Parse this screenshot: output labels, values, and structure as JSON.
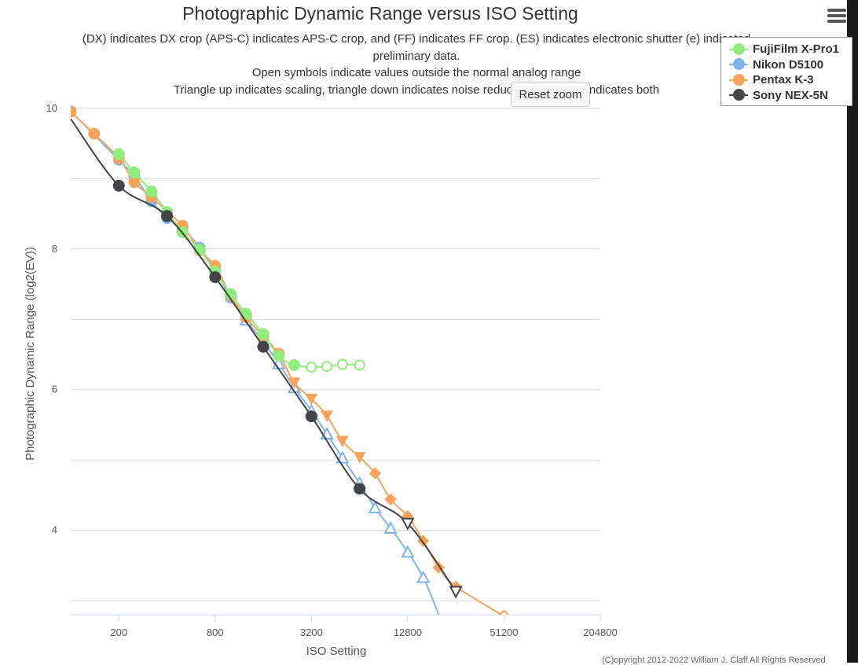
{
  "chart_data": {
    "type": "line",
    "title": "Photographic Dynamic Range versus ISO Setting",
    "subtitle_lines": [
      "(DX) indicates DX crop (APS-C) indicates APS-C crop, and (FF) indicates FF crop. (ES) indicates electronic shutter (e) indicated",
      "preliminary data.",
      "Open symbols indicate values outside the normal analog range",
      "Triangle up indicates scaling, triangle down indicates noise reduction, diamond indicates both"
    ],
    "xlabel": "ISO Setting",
    "ylabel": "Photographic Dynamic Range (log2(EV))",
    "x_scale": "log2",
    "x_ticks": [
      200,
      800,
      3200,
      12800,
      51200,
      204800
    ],
    "x_tick_labels": [
      "200",
      "800",
      "3200",
      "12800",
      "51200",
      "204800"
    ],
    "xlim": [
      100,
      204800
    ],
    "y_ticks": [
      4,
      6,
      8,
      10
    ],
    "y_tick_labels": [
      "4",
      "6",
      "8",
      "10"
    ],
    "ylim": [
      2.8,
      10.2
    ],
    "grid": true,
    "legend_position": "top-right",
    "series": [
      {
        "name": "FujiFilm X-Pro1",
        "color": "#90ed7d",
        "points": [
          {
            "iso": 200,
            "dr": 9.35,
            "marker": "circle",
            "open": false
          },
          {
            "iso": 250,
            "dr": 9.09,
            "marker": "circle",
            "open": false
          },
          {
            "iso": 320,
            "dr": 8.82,
            "marker": "circle",
            "open": false
          },
          {
            "iso": 400,
            "dr": 8.53,
            "marker": "circle",
            "open": false
          },
          {
            "iso": 500,
            "dr": 8.24,
            "marker": "circle",
            "open": false
          },
          {
            "iso": 640,
            "dr": 7.99,
            "marker": "circle",
            "open": false
          },
          {
            "iso": 800,
            "dr": 7.68,
            "marker": "circle",
            "open": false
          },
          {
            "iso": 1000,
            "dr": 7.36,
            "marker": "circle",
            "open": false
          },
          {
            "iso": 1250,
            "dr": 7.08,
            "marker": "circle",
            "open": false
          },
          {
            "iso": 1600,
            "dr": 6.79,
            "marker": "circle",
            "open": false
          },
          {
            "iso": 2000,
            "dr": 6.48,
            "marker": "circle",
            "open": false
          },
          {
            "iso": 2500,
            "dr": 6.35,
            "marker": "circle",
            "open": false
          },
          {
            "iso": 3200,
            "dr": 6.32,
            "marker": "circle",
            "open": true
          },
          {
            "iso": 4000,
            "dr": 6.33,
            "marker": "circle",
            "open": true
          },
          {
            "iso": 5000,
            "dr": 6.36,
            "marker": "circle",
            "open": true
          },
          {
            "iso": 6400,
            "dr": 6.35,
            "marker": "circle",
            "open": true
          }
        ]
      },
      {
        "name": "Nikon D5100",
        "color": "#7cb5ec",
        "points": [
          {
            "iso": 100,
            "dr": 9.96,
            "marker": "circle",
            "open": false
          },
          {
            "iso": 200,
            "dr": 9.27,
            "marker": "circle",
            "open": false
          },
          {
            "iso": 250,
            "dr": 9.04,
            "marker": "circle",
            "open": false
          },
          {
            "iso": 320,
            "dr": 8.68,
            "marker": "circle",
            "open": false
          },
          {
            "iso": 400,
            "dr": 8.44,
            "marker": "circle",
            "open": false
          },
          {
            "iso": 500,
            "dr": 8.3,
            "marker": "circle",
            "open": false
          },
          {
            "iso": 640,
            "dr": 8.02,
            "marker": "circle",
            "open": false
          },
          {
            "iso": 800,
            "dr": 7.7,
            "marker": "circle",
            "open": false
          },
          {
            "iso": 1000,
            "dr": 7.31,
            "marker": "circle",
            "open": false
          },
          {
            "iso": 1250,
            "dr": 6.99,
            "marker": "triangle-up",
            "open": true
          },
          {
            "iso": 1600,
            "dr": 6.68,
            "marker": "triangle-up",
            "open": true
          },
          {
            "iso": 2000,
            "dr": 6.37,
            "marker": "triangle-up",
            "open": true
          },
          {
            "iso": 2500,
            "dr": 6.03,
            "marker": "triangle-up",
            "open": true
          },
          {
            "iso": 3200,
            "dr": 5.7,
            "marker": "triangle-up",
            "open": true
          },
          {
            "iso": 4000,
            "dr": 5.37,
            "marker": "triangle-up",
            "open": true
          },
          {
            "iso": 5000,
            "dr": 5.03,
            "marker": "triangle-up",
            "open": true
          },
          {
            "iso": 6400,
            "dr": 4.67,
            "marker": "triangle-up",
            "open": true
          },
          {
            "iso": 8000,
            "dr": 4.32,
            "marker": "triangle-up",
            "open": true
          },
          {
            "iso": 10000,
            "dr": 4.03,
            "marker": "triangle-up",
            "open": true
          },
          {
            "iso": 12800,
            "dr": 3.69,
            "marker": "triangle-up",
            "open": true
          },
          {
            "iso": 16000,
            "dr": 3.33,
            "marker": "triangle-up",
            "open": true
          },
          {
            "iso": 20000,
            "dr": 2.8,
            "marker": "none",
            "open": false
          }
        ]
      },
      {
        "name": "Pentax K-3",
        "color": "#f7a35c",
        "points": [
          {
            "iso": 100,
            "dr": 9.95,
            "marker": "circle",
            "open": false
          },
          {
            "iso": 140,
            "dr": 9.64,
            "marker": "circle",
            "open": false
          },
          {
            "iso": 200,
            "dr": 9.29,
            "marker": "circle",
            "open": false
          },
          {
            "iso": 250,
            "dr": 8.95,
            "marker": "circle",
            "open": false
          },
          {
            "iso": 320,
            "dr": 8.74,
            "marker": "circle",
            "open": false
          },
          {
            "iso": 500,
            "dr": 8.33,
            "marker": "circle",
            "open": false
          },
          {
            "iso": 640,
            "dr": 7.98,
            "marker": "circle",
            "open": false
          },
          {
            "iso": 800,
            "dr": 7.76,
            "marker": "circle",
            "open": false
          },
          {
            "iso": 1000,
            "dr": 7.34,
            "marker": "circle",
            "open": false
          },
          {
            "iso": 1250,
            "dr": 7.03,
            "marker": "circle",
            "open": false
          },
          {
            "iso": 1600,
            "dr": 6.76,
            "marker": "circle",
            "open": false
          },
          {
            "iso": 2000,
            "dr": 6.51,
            "marker": "circle",
            "open": false
          },
          {
            "iso": 2500,
            "dr": 6.1,
            "marker": "triangle-down",
            "open": false
          },
          {
            "iso": 3200,
            "dr": 5.87,
            "marker": "triangle-down",
            "open": false
          },
          {
            "iso": 4000,
            "dr": 5.63,
            "marker": "triangle-down",
            "open": false
          },
          {
            "iso": 5000,
            "dr": 5.27,
            "marker": "triangle-down",
            "open": false
          },
          {
            "iso": 6400,
            "dr": 5.04,
            "marker": "triangle-down",
            "open": false
          },
          {
            "iso": 8000,
            "dr": 4.81,
            "marker": "diamond",
            "open": false
          },
          {
            "iso": 10000,
            "dr": 4.44,
            "marker": "diamond",
            "open": false
          },
          {
            "iso": 12800,
            "dr": 4.2,
            "marker": "diamond",
            "open": false
          },
          {
            "iso": 16000,
            "dr": 3.85,
            "marker": "diamond",
            "open": false
          },
          {
            "iso": 20000,
            "dr": 3.47,
            "marker": "diamond",
            "open": false
          },
          {
            "iso": 25600,
            "dr": 3.2,
            "marker": "diamond",
            "open": false
          },
          {
            "iso": 51200,
            "dr": 2.78,
            "marker": "diamond",
            "open": true
          }
        ]
      },
      {
        "name": "Sony NEX-5N",
        "color": "#434348",
        "points": [
          {
            "iso": 100,
            "dr": 9.85,
            "marker": "none",
            "open": false
          },
          {
            "iso": 200,
            "dr": 8.9,
            "marker": "circle",
            "open": false
          },
          {
            "iso": 400,
            "dr": 8.47,
            "marker": "circle",
            "open": false
          },
          {
            "iso": 800,
            "dr": 7.6,
            "marker": "circle",
            "open": false
          },
          {
            "iso": 1600,
            "dr": 6.61,
            "marker": "circle",
            "open": false
          },
          {
            "iso": 3200,
            "dr": 5.62,
            "marker": "circle",
            "open": false
          },
          {
            "iso": 6400,
            "dr": 4.59,
            "marker": "circle",
            "open": false
          },
          {
            "iso": 12800,
            "dr": 4.1,
            "marker": "triangle-down",
            "open": true
          },
          {
            "iso": 25600,
            "dr": 3.13,
            "marker": "triangle-down",
            "open": true
          }
        ]
      }
    ]
  },
  "ui": {
    "reset_zoom_label": "Reset zoom",
    "menu_icon": "hamburger-menu-icon",
    "copyright": "(C)opyright 2012-2022 William J. Claff All Rights Reserved"
  }
}
